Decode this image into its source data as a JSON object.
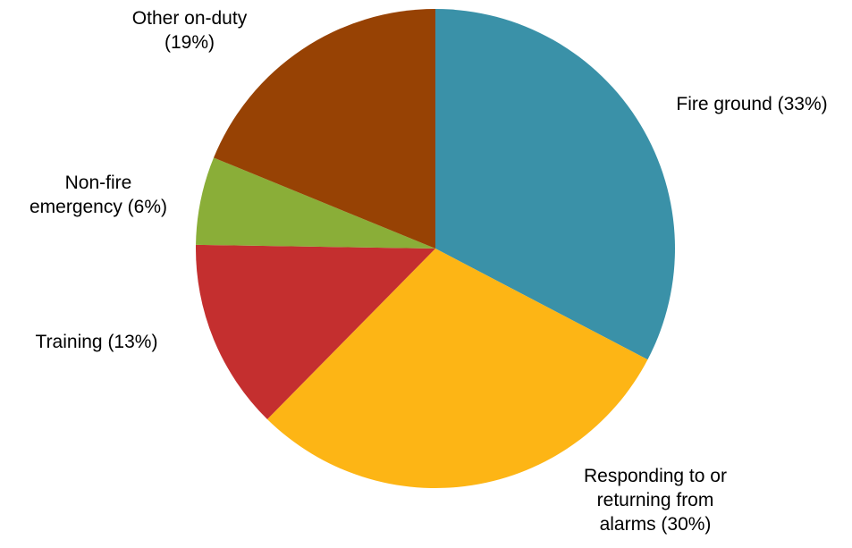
{
  "chart_data": {
    "type": "pie",
    "title": "",
    "start_angle_deg": 0,
    "direction": "clockwise",
    "series": [
      {
        "values": [
          33,
          30,
          13,
          6,
          19
        ],
        "categories": [
          "Fire ground",
          "Responding to or returning from alarms",
          "Training",
          "Non-fire emergency",
          "Other on-duty"
        ]
      }
    ],
    "slices": [
      {
        "category": "Fire ground",
        "value": 33,
        "color": "#3A91A8",
        "label_lines": [
          "Fire ground (33%)"
        ]
      },
      {
        "category": "Responding to or returning from alarms",
        "value": 30,
        "color": "#FDB515",
        "label_lines": [
          "Responding to or",
          "returning from",
          "alarms (30%)"
        ]
      },
      {
        "category": "Training",
        "value": 13,
        "color": "#C42F2F",
        "label_lines": [
          "Training (13%)"
        ]
      },
      {
        "category": "Non-fire emergency",
        "value": 6,
        "color": "#8AAE38",
        "label_lines": [
          "Non-fire",
          "emergency (6%)"
        ]
      },
      {
        "category": "Other on-duty",
        "value": 19,
        "color": "#974204",
        "label_lines": [
          "Other on-duty",
          "(19%)"
        ]
      }
    ],
    "legend": "none"
  }
}
